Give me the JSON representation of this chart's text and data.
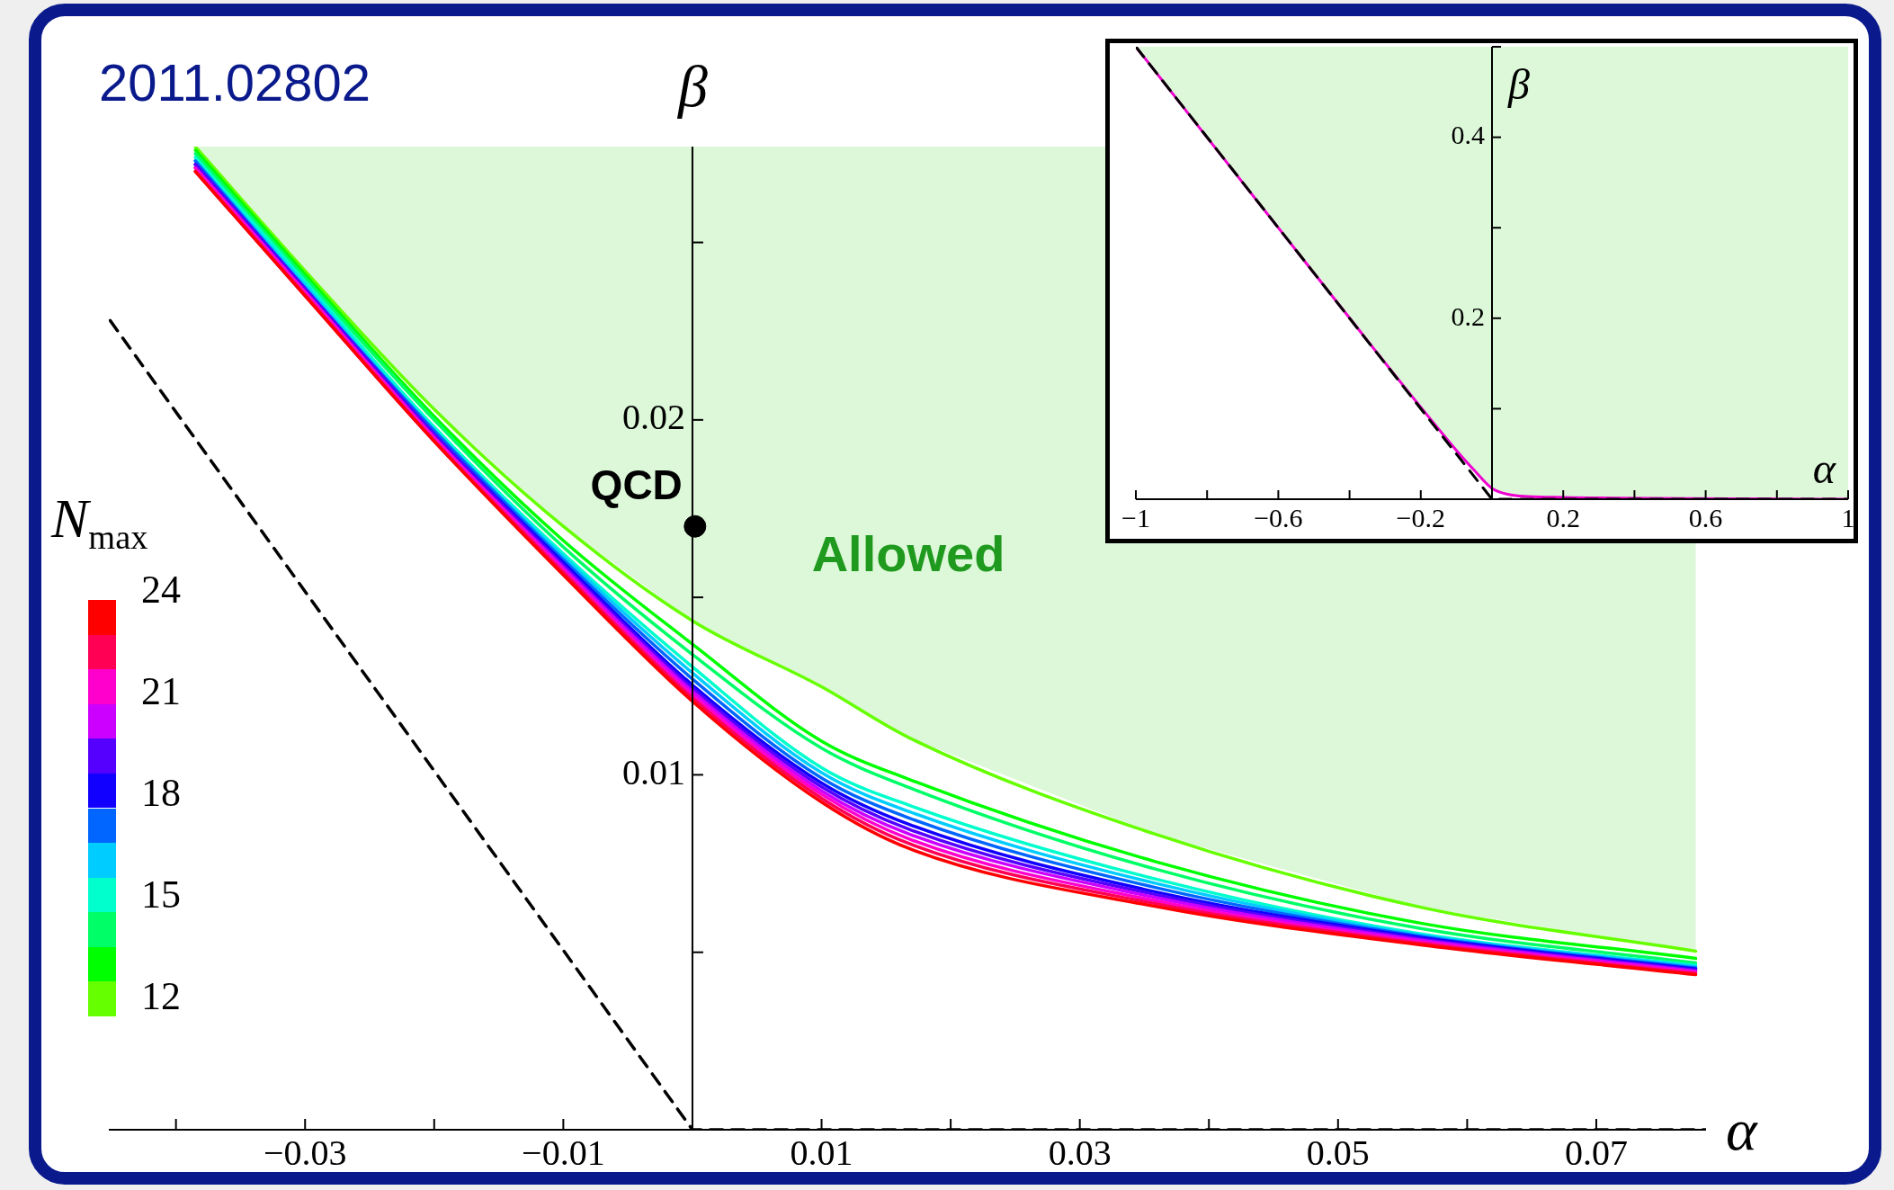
{
  "chart_data": [
    {
      "type": "line",
      "xlabel": "α",
      "ylabel": "β",
      "clabel": "N$_{max}$",
      "marker": "none",
      "annotations": [
        "2011.02802",
        "Allowed",
        "24",
        "21",
        "18",
        "15",
        "12",
        {
          "text": "QCD",
          "x": 0.0002,
          "y": 0.017
        }
      ],
      "xlim": [
        -0.0452,
        0.0785
      ],
      "ylim": [
        0,
        0.0277
      ],
      "xticks": [
        {
          "value": -0.04,
          "label": null
        },
        {
          "value": -0.03,
          "label": "−0.03"
        },
        {
          "value": -0.02,
          "label": null
        },
        {
          "value": -0.01,
          "label": "−0.01"
        },
        {
          "value": 0.01,
          "label": "0.01"
        },
        {
          "value": 0.02,
          "label": null
        },
        {
          "value": 0.03,
          "label": "0.03"
        },
        {
          "value": 0.04,
          "label": null
        },
        {
          "value": 0.05,
          "label": "0.05"
        },
        {
          "value": 0.06,
          "label": null
        },
        {
          "value": 0.07,
          "label": "0.07"
        }
      ],
      "yticks": [
        {
          "value": 0.005,
          "label": null
        },
        0.01,
        {
          "value": 0.015,
          "label": null
        },
        0.02,
        {
          "value": 0.025,
          "label": null
        }
      ],
      "x": [
        -0.0385,
        -0.03,
        -0.02,
        -0.01,
        0,
        0.01,
        0.0168,
        0.0359,
        0.0564,
        0.0777
      ],
      "series": [
        {
          "color": "#66ff00",
          "values": [
            0.0277,
            0.0242,
            0.0203,
            0.017,
            0.01434,
            0.01248,
            0.01104,
            0.00832,
            0.00627,
            0.00503
          ]
        },
        {
          "color": "#00ff00",
          "values": [
            0.0276,
            0.0241,
            0.0201,
            0.0166,
            0.01368,
            0.01095,
            0.00987,
            0.00755,
            0.00582,
            0.00483
          ]
        },
        {
          "color": "#00ff66",
          "values": [
            0.0275,
            0.024,
            0.02,
            0.01642,
            0.01339,
            0.01075,
            0.00964,
            0.00734,
            0.00567,
            0.0047
          ]
        },
        {
          "color": "#00ffcc",
          "values": [
            0.0274,
            0.0239,
            0.0198,
            0.01623,
            0.01304,
            0.0102,
            0.00914,
            0.00706,
            0.00552,
            0.00463
          ]
        },
        {
          "color": "#00ccff",
          "values": [
            0.0273,
            0.0238,
            0.0197,
            0.01615,
            0.01287,
            0.01006,
            0.00896,
            0.00694,
            0.00549,
            0.0046
          ]
        },
        {
          "color": "#0066ff",
          "values": [
            0.0273,
            0.0237,
            0.0197,
            0.01606,
            0.0127,
            0.00991,
            0.00878,
            0.00682,
            0.00545,
            0.00456
          ]
        },
        {
          "color": "#1100ff",
          "values": [
            0.0272,
            0.0237,
            0.0196,
            0.01598,
            0.01253,
            0.00977,
            0.0086,
            0.0067,
            0.00542,
            0.00453
          ]
        },
        {
          "color": "#5500ff",
          "values": [
            0.0272,
            0.0237,
            0.0196,
            0.01591,
            0.01244,
            0.00966,
            0.00846,
            0.00662,
            0.00538,
            0.0045
          ]
        },
        {
          "color": "#cc00ff",
          "values": [
            0.0271,
            0.0236,
            0.0195,
            0.01584,
            0.01235,
            0.00955,
            0.00833,
            0.00654,
            0.00534,
            0.00447
          ]
        },
        {
          "color": "#ff00cc",
          "values": [
            0.0271,
            0.0236,
            0.0195,
            0.01577,
            0.01225,
            0.00945,
            0.00819,
            0.00645,
            0.00529,
            0.00444
          ]
        },
        {
          "color": "#ff0055",
          "values": [
            0.027,
            0.0235,
            0.0194,
            0.0157,
            0.01216,
            0.00934,
            0.00806,
            0.00637,
            0.00525,
            0.0044
          ]
        },
        {
          "color": "#ff0000",
          "values": [
            0.027,
            0.0235,
            0.0194,
            0.01563,
            0.01207,
            0.00923,
            0.00792,
            0.00629,
            0.00521,
            0.00437
          ]
        },
        {
          "type": "line",
          "color": "#000000",
          "line_style": "dashed",
          "x": [
            -0.0451,
            0,
            0.0785
          ],
          "values": [
            0.0228,
            0,
            0
          ]
        },
        {
          "type": "scatter",
          "color": "#000000",
          "marker": "circle",
          "x": [
            0.0002
          ],
          "values": [
            0.017
          ]
        }
      ]
    },
    {
      "type": "line",
      "xlabel": "α",
      "ylabel": "β",
      "marker": "none",
      "xlim": [
        -1,
        1
      ],
      "ylim": [
        0,
        0.5
      ],
      "xticks": [
        {
          "value": -1,
          "label": "−1"
        },
        {
          "value": -0.8,
          "label": null
        },
        {
          "value": -0.6,
          "label": "−0.6"
        },
        {
          "value": -0.4,
          "label": null
        },
        {
          "value": -0.2,
          "label": "−0.2"
        },
        {
          "value": 0.2,
          "label": "0.2"
        },
        {
          "value": 0.4,
          "label": null
        },
        {
          "value": 0.6,
          "label": "0.6"
        },
        {
          "value": 0.8,
          "label": null
        },
        1
      ],
      "yticks": [
        {
          "value": 0.1,
          "label": null
        },
        0.2,
        {
          "value": 0.3,
          "label": null
        },
        0.4,
        {
          "value": 0.5,
          "label": null
        }
      ],
      "x": [
        -1,
        -0.5,
        -0.1,
        -0.05,
        0,
        0.05,
        0.1,
        0.2,
        1
      ],
      "series": [
        {
          "color": "#f000d0",
          "values": [
            0.5,
            0.25,
            0.054,
            0.032,
            0.012,
            0.005,
            0.003,
            0.002,
            0
          ]
        },
        {
          "type": "line",
          "color": "#000000",
          "line_style": "dashed",
          "x": [
            -1,
            0,
            1
          ],
          "values": [
            0.5,
            0,
            0
          ]
        }
      ]
    }
  ]
}
